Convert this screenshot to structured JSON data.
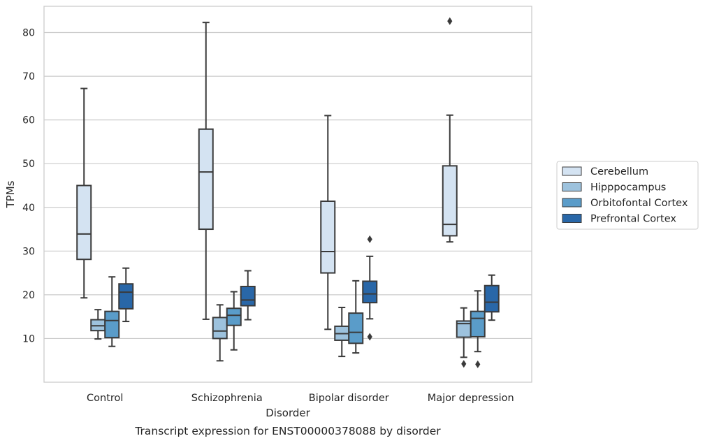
{
  "chart_data": {
    "type": "box",
    "caption": "Transcript expression for ENST00000378088 by disorder",
    "xlabel": "Disorder",
    "ylabel": "TPMs",
    "ylim": [
      0,
      86
    ],
    "yticks": [
      10,
      20,
      30,
      40,
      50,
      60,
      70,
      80
    ],
    "grid": "horizontal",
    "legend_position": "right",
    "categories": [
      "Control",
      "Schizophrenia",
      "Bipolar disorder",
      "Major depression"
    ],
    "series": [
      {
        "name": "Cerebellum",
        "color": "#d4e3f2",
        "boxes": [
          {
            "whisker_low": 19.3,
            "q1": 28.1,
            "median": 33.9,
            "q3": 45.0,
            "whisker_high": 67.2,
            "outliers": []
          },
          {
            "whisker_low": 14.4,
            "q1": 35.0,
            "median": 48.1,
            "q3": 57.9,
            "whisker_high": 82.3,
            "outliers": []
          },
          {
            "whisker_low": 12.1,
            "q1": 25.0,
            "median": 29.9,
            "q3": 41.4,
            "whisker_high": 61.0,
            "outliers": []
          },
          {
            "whisker_low": 32.1,
            "q1": 33.5,
            "median": 36.1,
            "q3": 49.5,
            "whisker_high": 61.1,
            "outliers": [
              82.6
            ]
          }
        ]
      },
      {
        "name": "Hipppocampus",
        "color": "#9dc2dd",
        "boxes": [
          {
            "whisker_low": 9.9,
            "q1": 11.8,
            "median": 12.9,
            "q3": 14.3,
            "whisker_high": 16.6,
            "outliers": []
          },
          {
            "whisker_low": 4.9,
            "q1": 10.0,
            "median": 11.7,
            "q3": 14.8,
            "whisker_high": 17.7,
            "outliers": []
          },
          {
            "whisker_low": 5.9,
            "q1": 9.6,
            "median": 11.1,
            "q3": 12.8,
            "whisker_high": 17.1,
            "outliers": []
          },
          {
            "whisker_low": 5.7,
            "q1": 10.3,
            "median": 13.4,
            "q3": 14.0,
            "whisker_high": 17.0,
            "outliers": [
              4.2
            ]
          }
        ]
      },
      {
        "name": "Orbitofontal Cortex",
        "color": "#5a9cc9",
        "boxes": [
          {
            "whisker_low": 8.2,
            "q1": 10.2,
            "median": 14.1,
            "q3": 16.2,
            "whisker_high": 24.1,
            "outliers": []
          },
          {
            "whisker_low": 7.4,
            "q1": 13.0,
            "median": 15.3,
            "q3": 16.9,
            "whisker_high": 20.7,
            "outliers": []
          },
          {
            "whisker_low": 6.7,
            "q1": 8.9,
            "median": 11.4,
            "q3": 15.8,
            "whisker_high": 23.2,
            "outliers": []
          },
          {
            "whisker_low": 7.0,
            "q1": 10.4,
            "median": 14.6,
            "q3": 16.2,
            "whisker_high": 20.9,
            "outliers": [
              4.1
            ]
          }
        ]
      },
      {
        "name": "Prefrontal Cortex",
        "color": "#2967a8",
        "boxes": [
          {
            "whisker_low": 13.9,
            "q1": 16.8,
            "median": 20.6,
            "q3": 22.5,
            "whisker_high": 26.1,
            "outliers": []
          },
          {
            "whisker_low": 14.3,
            "q1": 17.5,
            "median": 18.8,
            "q3": 21.9,
            "whisker_high": 25.5,
            "outliers": []
          },
          {
            "whisker_low": 14.5,
            "q1": 18.2,
            "median": 20.2,
            "q3": 23.1,
            "whisker_high": 28.8,
            "outliers": [
              10.4,
              32.7
            ]
          },
          {
            "whisker_low": 14.2,
            "q1": 16.1,
            "median": 18.3,
            "q3": 22.1,
            "whisker_high": 24.5,
            "outliers": []
          }
        ]
      }
    ]
  }
}
